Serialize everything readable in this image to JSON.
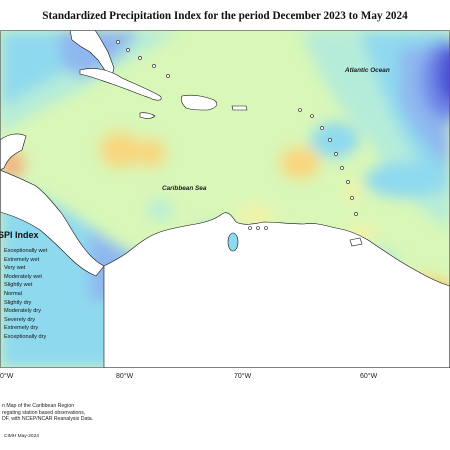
{
  "title": "Standardized Precipitation Index for the period December 2023 to May 2024",
  "labels": {
    "atlantic": "Atlantic Ocean",
    "caribbean": "Caribbean Sea"
  },
  "longitude_ticks": [
    "0°W",
    "80°W",
    "70°W",
    "60°W"
  ],
  "legend": {
    "title": "SPI Index",
    "items": [
      {
        "label": "Exceptionally wet",
        "color": "#4a4fd0"
      },
      {
        "label": "Extremely wet",
        "color": "#6f86e8"
      },
      {
        "label": "Very wet",
        "color": "#8fb6ef"
      },
      {
        "label": "Moderately wet",
        "color": "#8fd9ef"
      },
      {
        "label": "Slightly wet",
        "color": "#b5ecd9"
      },
      {
        "label": "Normal",
        "color": "#d9f7b8"
      },
      {
        "label": "Slightly dry",
        "color": "#f4f2a6"
      },
      {
        "label": "Moderately dry",
        "color": "#f9d67e"
      },
      {
        "label": "Severely dry",
        "color": "#f3b07a"
      },
      {
        "label": "Extremely dry",
        "color": "#ec8f8f"
      },
      {
        "label": "Exceptionally dry",
        "color": "#d96a8c"
      }
    ]
  },
  "credit": [
    "n Map of the Caribbean Region",
    "regating station based observations,",
    "DF, with NCEP/NCAR Reanalysis Data."
  ],
  "copyright": "CIMH May-2024"
}
